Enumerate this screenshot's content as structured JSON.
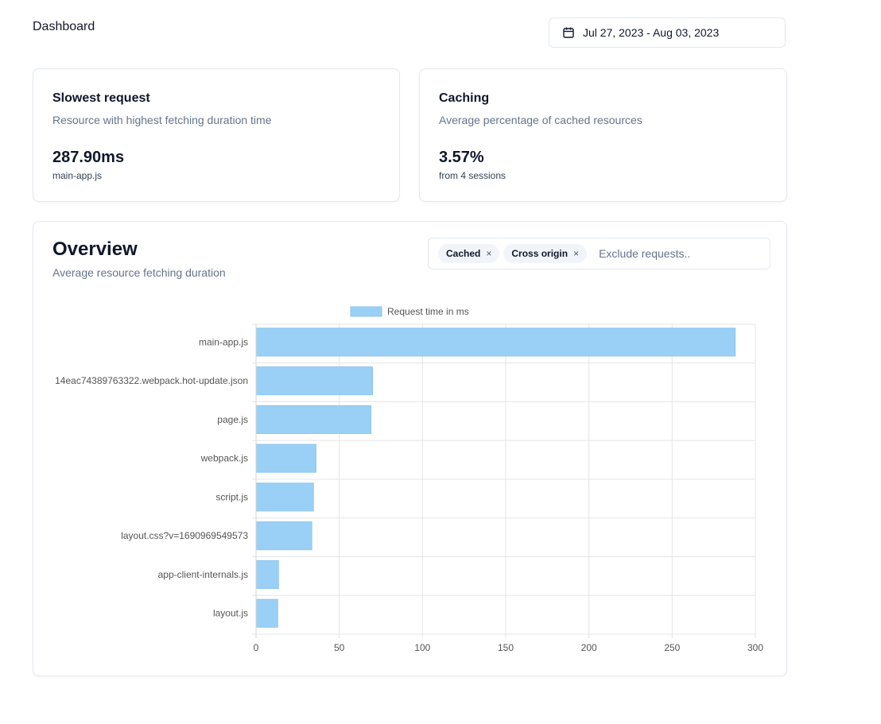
{
  "header": {
    "title": "Dashboard",
    "date_range": "Jul 27, 2023 - Aug 03, 2023"
  },
  "slowest": {
    "title": "Slowest request",
    "description": "Resource with highest fetching duration time",
    "value": "287.90ms",
    "sub": "main-app.js"
  },
  "caching": {
    "title": "Caching",
    "description": "Average percentage of cached resources",
    "value": "3.57%",
    "sub": "from 4 sessions"
  },
  "overview": {
    "title": "Overview",
    "description": "Average resource fetching duration",
    "filters": [
      {
        "label": "Cached"
      },
      {
        "label": "Cross origin"
      }
    ],
    "remove_glyph": "×",
    "placeholder": "Exclude requests.."
  },
  "chart_data": {
    "type": "bar",
    "orientation": "horizontal",
    "categories": [
      "main-app.js",
      "14eac74389763322.webpack.hot-update.json",
      "page.js",
      "webpack.js",
      "script.js",
      "layout.css?v=1690969549573",
      "app-client-internals.js",
      "layout.js"
    ],
    "series": [
      {
        "name": "Request time in ms",
        "values": [
          287.9,
          70,
          69,
          36,
          34.5,
          33.5,
          13.5,
          13
        ],
        "color": "#9ad0f5"
      }
    ],
    "xlim": [
      0,
      300
    ],
    "xticks": [
      0,
      50,
      100,
      150,
      200,
      250,
      300
    ],
    "xlabel": "",
    "ylabel": "",
    "legend": "top",
    "grid": true
  }
}
